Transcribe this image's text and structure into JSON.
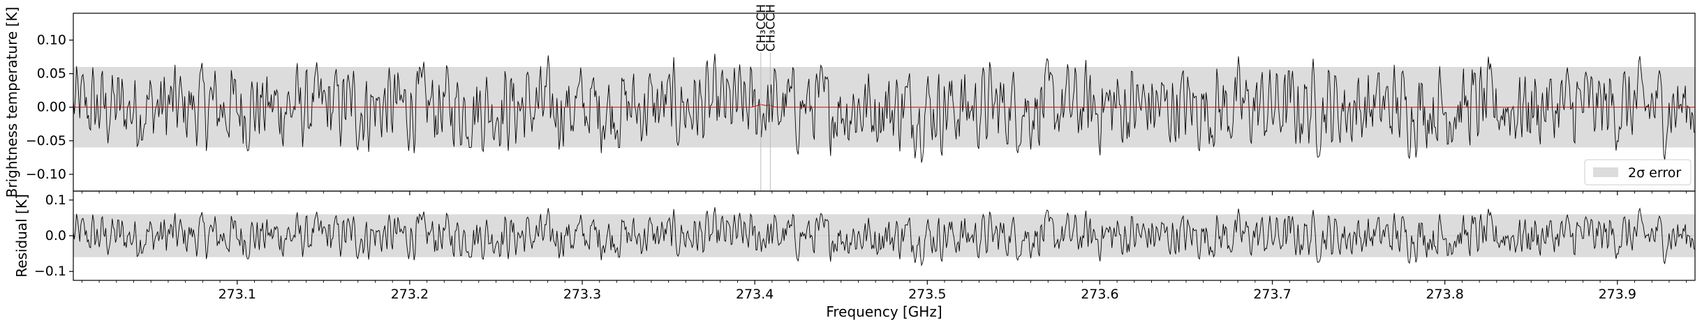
{
  "chart_data": [
    {
      "type": "line",
      "panel": "top",
      "ylabel": "Brightness temperature [K]",
      "xlim": [
        273.005,
        273.945
      ],
      "ylim": [
        -0.125,
        0.14
      ],
      "yticks": [
        -0.1,
        -0.05,
        0.0,
        0.05,
        0.1
      ],
      "ytick_labels": [
        "−0.10",
        "−0.05",
        "0.00",
        "0.05",
        "0.10"
      ],
      "error_band": [
        -0.06,
        0.06
      ],
      "series": [
        {
          "kind": "observed spectrum",
          "color": "#000000",
          "noise_amplitude": 0.045,
          "seed": 12345
        },
        {
          "kind": "model",
          "color": "#e00000",
          "features": [
            {
              "x": 273.4035,
              "amp": 0.004,
              "width": 0.003
            },
            {
              "x": 273.4085,
              "amp": 0.003,
              "width": 0.002
            }
          ]
        }
      ],
      "line_markers": [
        {
          "x": 273.4035,
          "label": "CH₃CCH"
        },
        {
          "x": 273.409,
          "label": "CH₃CCH"
        }
      ],
      "legend": {
        "label": "2σ error",
        "placement": "lower-right"
      },
      "grid": false
    },
    {
      "type": "line",
      "panel": "bottom",
      "ylabel": "Residual [K]",
      "xlabel": "Frequency [GHz]",
      "xlim": [
        273.005,
        273.945
      ],
      "ylim": [
        -0.125,
        0.125
      ],
      "yticks": [
        -0.1,
        0.0,
        0.1
      ],
      "ytick_labels": [
        "−0.1",
        "0.0",
        "0.1"
      ],
      "xticks": [
        273.1,
        273.2,
        273.3,
        273.4,
        273.5,
        273.6,
        273.7,
        273.8,
        273.9
      ],
      "xtick_labels": [
        "273.1",
        "273.2",
        "273.3",
        "273.4",
        "273.5",
        "273.6",
        "273.7",
        "273.8",
        "273.9"
      ],
      "error_band": [
        -0.06,
        0.06
      ],
      "series": [
        {
          "kind": "residual",
          "color": "#000000",
          "noise_amplitude": 0.045,
          "seed": 12345
        }
      ],
      "grid": false
    }
  ]
}
